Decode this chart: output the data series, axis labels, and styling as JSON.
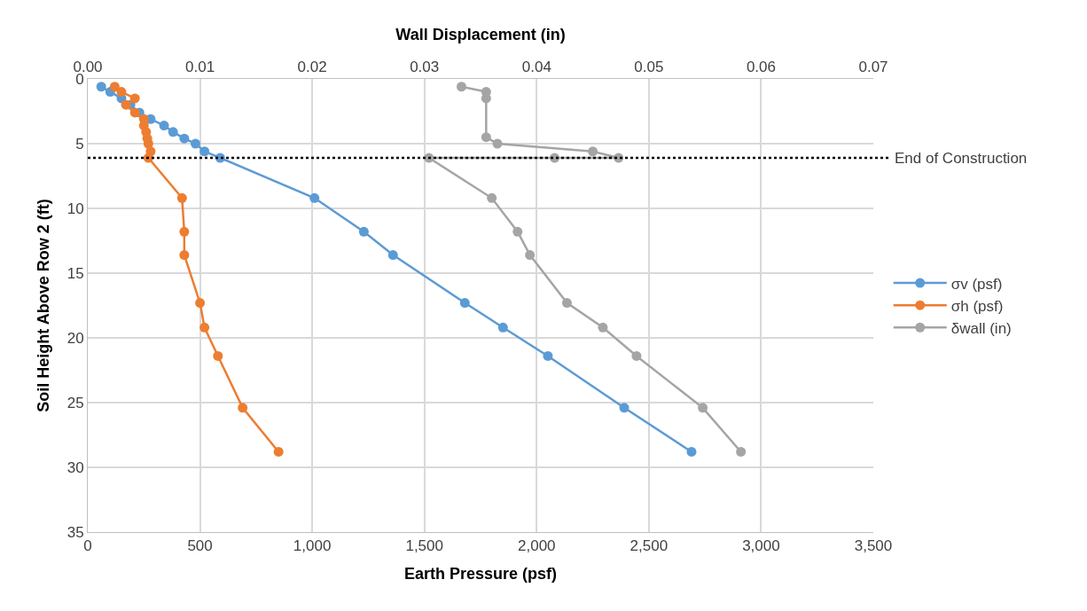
{
  "chart_data": {
    "type": "line",
    "xlabel": "Earth Pressure (psf)",
    "ylabel": "Soil Height Above Row 2 (ft)",
    "x2label": "Wall Displacement (in)",
    "xlim": [
      0,
      3500
    ],
    "xticks": [
      {
        "value": 0,
        "label": "0"
      },
      {
        "value": 500,
        "label": "500"
      },
      {
        "value": 1000,
        "label": "1,000"
      },
      {
        "value": 1500,
        "label": "1,500"
      },
      {
        "value": 2000,
        "label": "2,000"
      },
      {
        "value": 2500,
        "label": "2,500"
      },
      {
        "value": 3000,
        "label": "3,000"
      },
      {
        "value": 3500,
        "label": "3,500"
      }
    ],
    "x2lim": [
      0,
      0.07
    ],
    "x2ticks": [
      {
        "value": 0,
        "label": "0.00"
      },
      0.01,
      0.02,
      0.03,
      0.04,
      0.05,
      0.06,
      0.07
    ],
    "ylim": [
      35,
      0
    ],
    "yticks": [
      0,
      5,
      10,
      15,
      20,
      25,
      30,
      35
    ],
    "grid": true,
    "legend": "right",
    "marker": "circle",
    "line_style": "solid",
    "series": [
      {
        "name": "σv (psf)",
        "color": "#5b9bd5",
        "x": [
          60,
          100,
          150,
          190,
          230,
          280,
          340,
          380,
          430,
          480,
          520,
          590,
          1010,
          1230,
          1360,
          1680,
          1850,
          2050,
          2390,
          2690
        ],
        "values": [
          0.6,
          1,
          1.5,
          2,
          2.6,
          3.1,
          3.6,
          4.1,
          4.6,
          5.0,
          5.6,
          6.1,
          9.2,
          11.8,
          13.6,
          17.3,
          19.2,
          21.4,
          25.4,
          28.8
        ]
      },
      {
        "name": "σh (psf)",
        "color": "#ed7d31",
        "x": [
          120,
          150,
          210,
          170,
          210,
          250,
          250,
          260,
          265,
          270,
          280,
          270,
          420,
          430,
          430,
          500,
          520,
          580,
          690,
          850
        ],
        "values": [
          0.6,
          1,
          1.5,
          2,
          2.6,
          3.1,
          3.6,
          4.1,
          4.6,
          5.0,
          5.6,
          6.1,
          9.2,
          11.8,
          13.6,
          17.3,
          19.2,
          21.4,
          25.4,
          28.8
        ]
      },
      {
        "name": "δwall (in)",
        "color": "#a5a5a5",
        "axis": "x2",
        "x": [
          0.0333,
          0.0355,
          0.0355,
          0.0355,
          0.0365,
          0.045,
          0.0473,
          0.0416,
          0.0304,
          0.036,
          0.0383,
          0.0394,
          0.0427,
          0.0459,
          0.0489,
          0.0548,
          0.0582
        ],
        "values": [
          0.6,
          1.0,
          1.5,
          4.5,
          5.0,
          5.6,
          6.1,
          6.1,
          6.1,
          9.2,
          11.8,
          13.6,
          17.3,
          19.2,
          21.4,
          25.4,
          28.8
        ]
      }
    ],
    "ref_lines": [
      {
        "axis": "y",
        "value": 6.1,
        "label": "End of Construction",
        "color": "#000000",
        "line_style": "dotted"
      }
    ]
  }
}
